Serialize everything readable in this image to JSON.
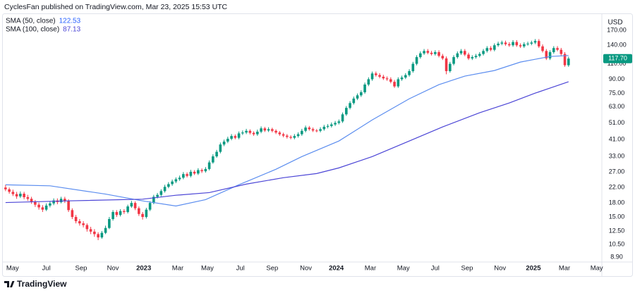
{
  "header": "CyclesFan published on TradingView.com, Mar 23, 2025 15:53 UTC",
  "footer": "TradingView",
  "chart_data": {
    "type": "candlestick",
    "currency": "USD",
    "log_scale": true,
    "grid": false,
    "xlim": [
      -1.5,
      160.8
    ],
    "ylim": [
      8.35,
      210
    ],
    "xticks": [
      {
        "value": 1.9,
        "label": "May"
      },
      {
        "value": 11.0,
        "label": "Jul"
      },
      {
        "value": 20.4,
        "label": "Sep"
      },
      {
        "value": 29.0,
        "label": "Nov"
      },
      {
        "value": 37.3,
        "label": "2023"
      },
      {
        "value": 46.5,
        "label": "Mar"
      },
      {
        "value": 54.5,
        "label": "May"
      },
      {
        "value": 63.4,
        "label": "Jul"
      },
      {
        "value": 72.0,
        "label": "Sep"
      },
      {
        "value": 81.1,
        "label": "Nov"
      },
      {
        "value": 89.3,
        "label": "2024"
      },
      {
        "value": 98.5,
        "label": "Mar"
      },
      {
        "value": 107.4,
        "label": "May"
      },
      {
        "value": 116.0,
        "label": "Jul"
      },
      {
        "value": 124.6,
        "label": "Sep"
      },
      {
        "value": 133.5,
        "label": "Nov"
      },
      {
        "value": 142.5,
        "label": "2025"
      },
      {
        "value": 150.9,
        "label": "Mar"
      },
      {
        "value": 159.6,
        "label": "May"
      }
    ],
    "yticks": [
      {
        "value": 170,
        "label": "170.00"
      },
      {
        "value": 140,
        "label": "140.00"
      },
      {
        "value": 110,
        "label": "110.00"
      },
      {
        "value": 90,
        "label": "90.00"
      },
      {
        "value": 75,
        "label": "75.00"
      },
      {
        "value": 63,
        "label": "63.00"
      },
      {
        "value": 51,
        "label": "51.00"
      },
      {
        "value": 41,
        "label": "41.00"
      },
      {
        "value": 33,
        "label": "33.00"
      },
      {
        "value": 27,
        "label": "27.00"
      },
      {
        "value": 22,
        "label": "22.00"
      },
      {
        "value": 18,
        "label": "18.00"
      },
      {
        "value": 15,
        "label": "15.00"
      },
      {
        "value": 12.5,
        "label": "12.50"
      },
      {
        "value": 10.5,
        "label": "10.50"
      },
      {
        "value": 8.9,
        "label": "8.90"
      }
    ],
    "series": [
      {
        "type": "candlestick",
        "up_color": "#089981",
        "down_color": "#f23645",
        "price_label": "117.70",
        "values": [
          [
            22.0,
            22.8,
            21.0,
            21.5
          ],
          [
            21.5,
            22.0,
            20.3,
            20.8
          ],
          [
            20.8,
            21.4,
            19.7,
            20.2
          ],
          [
            20.2,
            20.8,
            19.0,
            19.6
          ],
          [
            19.6,
            20.9,
            19.2,
            20.3
          ],
          [
            20.3,
            20.8,
            18.9,
            19.4
          ],
          [
            19.4,
            20.0,
            18.5,
            19.0
          ],
          [
            19.0,
            19.5,
            17.8,
            18.2
          ],
          [
            18.2,
            18.7,
            17.1,
            17.6
          ],
          [
            17.6,
            18.1,
            16.5,
            17.0
          ],
          [
            17.0,
            17.5,
            16.0,
            16.5
          ],
          [
            16.5,
            17.9,
            16.2,
            17.4
          ],
          [
            17.4,
            18.4,
            17.0,
            17.9
          ],
          [
            17.9,
            19.1,
            17.5,
            18.6
          ],
          [
            18.6,
            19.1,
            17.7,
            18.2
          ],
          [
            18.2,
            19.5,
            17.9,
            19.0
          ],
          [
            19.0,
            19.5,
            18.0,
            18.5
          ],
          [
            18.5,
            18.9,
            16.0,
            16.4
          ],
          [
            16.4,
            16.8,
            14.6,
            15.0
          ],
          [
            15.0,
            15.4,
            13.8,
            14.2
          ],
          [
            14.2,
            14.6,
            13.4,
            13.8
          ],
          [
            13.8,
            14.2,
            13.1,
            13.5
          ],
          [
            13.5,
            13.8,
            12.4,
            12.8
          ],
          [
            12.8,
            13.2,
            12.0,
            12.4
          ],
          [
            12.4,
            12.8,
            11.6,
            12.0
          ],
          [
            12.0,
            12.3,
            11.1,
            11.5
          ],
          [
            11.5,
            12.5,
            11.3,
            12.2
          ],
          [
            12.2,
            13.4,
            12.0,
            13.0
          ],
          [
            13.0,
            15.0,
            12.8,
            14.6
          ],
          [
            14.6,
            16.4,
            14.3,
            16.0
          ],
          [
            16.0,
            16.4,
            15.0,
            15.4
          ],
          [
            15.4,
            16.6,
            15.1,
            16.2
          ],
          [
            16.2,
            16.6,
            15.6,
            16.0
          ],
          [
            16.0,
            17.6,
            15.7,
            17.2
          ],
          [
            17.2,
            18.5,
            16.9,
            18.0
          ],
          [
            18.0,
            18.4,
            16.4,
            16.8
          ],
          [
            16.8,
            17.2,
            15.2,
            15.6
          ],
          [
            15.6,
            16.0,
            14.5,
            15.0
          ],
          [
            15.0,
            16.9,
            14.7,
            16.5
          ],
          [
            16.5,
            18.4,
            16.2,
            18.0
          ],
          [
            18.0,
            20.0,
            17.7,
            19.5
          ],
          [
            19.5,
            20.5,
            19.1,
            20.0
          ],
          [
            20.0,
            21.5,
            19.6,
            21.0
          ],
          [
            21.0,
            22.8,
            20.6,
            22.2
          ],
          [
            22.2,
            23.6,
            21.8,
            23.0
          ],
          [
            23.0,
            24.4,
            22.5,
            23.8
          ],
          [
            23.8,
            25.1,
            23.3,
            24.5
          ],
          [
            24.5,
            25.7,
            24.0,
            25.0
          ],
          [
            25.0,
            26.9,
            24.5,
            26.2
          ],
          [
            26.2,
            26.8,
            25.1,
            25.6
          ],
          [
            25.6,
            27.7,
            25.1,
            27.0
          ],
          [
            27.0,
            27.6,
            25.9,
            26.4
          ],
          [
            26.4,
            28.3,
            25.9,
            27.6
          ],
          [
            27.6,
            28.2,
            26.6,
            27.2
          ],
          [
            27.2,
            28.7,
            26.7,
            28.0
          ],
          [
            28.0,
            31.3,
            27.5,
            30.5
          ],
          [
            30.5,
            33.9,
            30.0,
            33.0
          ],
          [
            33.0,
            35.9,
            32.4,
            35.0
          ],
          [
            35.0,
            39.5,
            34.3,
            38.5
          ],
          [
            38.5,
            41.0,
            37.7,
            40.0
          ],
          [
            40.0,
            42.6,
            39.2,
            41.5
          ],
          [
            41.5,
            44.1,
            40.7,
            43.0
          ],
          [
            43.0,
            43.9,
            41.2,
            42.0
          ],
          [
            42.0,
            45.6,
            41.2,
            44.5
          ],
          [
            44.5,
            46.2,
            43.6,
            45.0
          ],
          [
            45.0,
            47.2,
            44.1,
            46.0
          ],
          [
            46.0,
            46.9,
            43.9,
            44.8
          ],
          [
            44.8,
            45.7,
            43.1,
            44.0
          ],
          [
            44.0,
            46.7,
            43.1,
            45.5
          ],
          [
            45.5,
            48.7,
            44.6,
            47.5
          ],
          [
            47.5,
            48.4,
            45.3,
            46.2
          ],
          [
            46.2,
            48.2,
            45.3,
            47.0
          ],
          [
            47.0,
            47.9,
            45.1,
            46.0
          ],
          [
            46.0,
            46.9,
            44.1,
            45.0
          ],
          [
            45.0,
            45.9,
            43.1,
            44.0
          ],
          [
            44.0,
            44.9,
            42.3,
            43.2
          ],
          [
            43.2,
            44.1,
            41.6,
            42.5
          ],
          [
            42.5,
            43.4,
            41.2,
            42.0
          ],
          [
            42.0,
            44.1,
            41.2,
            43.0
          ],
          [
            43.0,
            45.1,
            42.1,
            44.0
          ],
          [
            44.0,
            47.2,
            43.1,
            46.0
          ],
          [
            46.0,
            49.2,
            45.1,
            48.0
          ],
          [
            48.0,
            49.0,
            46.1,
            47.0
          ],
          [
            47.0,
            48.0,
            45.3,
            46.2
          ],
          [
            46.2,
            47.1,
            45.1,
            46.0
          ],
          [
            46.0,
            48.2,
            45.1,
            47.0
          ],
          [
            47.0,
            49.7,
            46.1,
            48.5
          ],
          [
            48.5,
            50.2,
            47.5,
            49.0
          ],
          [
            49.0,
            51.3,
            48.0,
            50.0
          ],
          [
            50.0,
            52.3,
            49.0,
            51.0
          ],
          [
            51.0,
            53.3,
            50.0,
            52.0
          ],
          [
            52.0,
            58.4,
            51.0,
            57.0
          ],
          [
            57.0,
            63.5,
            55.9,
            62.0
          ],
          [
            62.0,
            67.7,
            60.8,
            66.0
          ],
          [
            66.0,
            71.8,
            64.7,
            70.0
          ],
          [
            70.0,
            74.8,
            68.6,
            73.0
          ],
          [
            73.0,
            77.9,
            71.5,
            76.0
          ],
          [
            76.0,
            86.1,
            74.5,
            84.0
          ],
          [
            84.0,
            92.3,
            82.3,
            90.0
          ],
          [
            90.0,
            99.4,
            88.2,
            97.0
          ],
          [
            97.0,
            99.4,
            93.1,
            95.0
          ],
          [
            95.0,
            97.4,
            91.1,
            93.0
          ],
          [
            93.0,
            95.3,
            89.2,
            91.0
          ],
          [
            91.0,
            93.3,
            88.2,
            90.0
          ],
          [
            90.0,
            92.3,
            85.3,
            87.0
          ],
          [
            87.0,
            89.2,
            80.4,
            82.0
          ],
          [
            82.0,
            92.3,
            80.4,
            90.0
          ],
          [
            90.0,
            94.3,
            88.2,
            92.0
          ],
          [
            92.0,
            97.4,
            90.2,
            95.0
          ],
          [
            95.0,
            102.5,
            93.1,
            100.0
          ],
          [
            100.0,
            112.8,
            98.0,
            110.0
          ],
          [
            110.0,
            123.0,
            107.8,
            120.0
          ],
          [
            120.0,
            129.2,
            117.6,
            126.0
          ],
          [
            126.0,
            133.3,
            123.5,
            130.0
          ],
          [
            130.0,
            133.3,
            124.5,
            127.0
          ],
          [
            127.0,
            130.2,
            122.5,
            125.0
          ],
          [
            125.0,
            131.2,
            122.5,
            128.0
          ],
          [
            128.0,
            131.2,
            119.6,
            122.0
          ],
          [
            122.0,
            125.1,
            115.6,
            118.0
          ],
          [
            118.0,
            121.0,
            96.0,
            100.0
          ],
          [
            100.0,
            112.8,
            98.0,
            110.0
          ],
          [
            110.0,
            123.0,
            107.8,
            120.0
          ],
          [
            120.0,
            129.2,
            117.6,
            126.0
          ],
          [
            126.0,
            133.3,
            123.5,
            130.0
          ],
          [
            130.0,
            133.3,
            121.5,
            124.0
          ],
          [
            124.0,
            127.1,
            115.6,
            118.0
          ],
          [
            118.0,
            123.0,
            115.6,
            120.0
          ],
          [
            120.0,
            125.1,
            117.6,
            122.0
          ],
          [
            122.0,
            128.1,
            119.6,
            125.0
          ],
          [
            125.0,
            133.3,
            122.5,
            130.0
          ],
          [
            130.0,
            138.4,
            127.4,
            135.0
          ],
          [
            135.0,
            138.4,
            129.4,
            132.0
          ],
          [
            132.0,
            143.5,
            129.4,
            140.0
          ],
          [
            140.0,
            146.6,
            137.2,
            143.0
          ],
          [
            143.0,
            148.6,
            140.1,
            145.0
          ],
          [
            145.0,
            148.6,
            139.2,
            142.0
          ],
          [
            142.0,
            145.6,
            137.2,
            140.0
          ],
          [
            140.0,
            149.7,
            137.2,
            146.0
          ],
          [
            146.0,
            149.7,
            137.2,
            140.0
          ],
          [
            140.0,
            143.5,
            135.2,
            138.0
          ],
          [
            138.0,
            145.6,
            135.2,
            142.0
          ],
          [
            142.0,
            146.6,
            139.2,
            143.0
          ],
          [
            143.0,
            148.6,
            140.1,
            145.0
          ],
          [
            145.0,
            151.7,
            142.1,
            148.0
          ],
          [
            148.0,
            151.7,
            135.2,
            138.0
          ],
          [
            138.0,
            141.5,
            127.4,
            130.0
          ],
          [
            130.0,
            133.3,
            115.6,
            118.0
          ],
          [
            118.0,
            131.2,
            115.6,
            128.0
          ],
          [
            128.0,
            138.4,
            125.4,
            135.0
          ],
          [
            135.0,
            138.4,
            129.4,
            132.0
          ],
          [
            132.0,
            135.3,
            122.5,
            125.0
          ],
          [
            125.0,
            128.1,
            105.8,
            108.0
          ],
          [
            108.0,
            120.6,
            105.8,
            117.7
          ]
        ]
      },
      {
        "type": "line",
        "name": "SMA (50, close)",
        "color": "#5b8def",
        "value_color": "#2962ff",
        "x": [
          0,
          12,
          27,
          37,
          46,
          54,
          63,
          73,
          80,
          90,
          99,
          109,
          117,
          124,
          132,
          139,
          147,
          152
        ],
        "values": [
          22.8,
          22.5,
          20.2,
          18.5,
          17.3,
          18.8,
          22.8,
          27.9,
          32.9,
          40.3,
          53,
          69.8,
          83.9,
          93.7,
          100.8,
          112.5,
          121,
          122.53
        ]
      },
      {
        "type": "line",
        "name": "SMA (100, close)",
        "color": "#4b45d6",
        "value_color": "#4b45d6",
        "x": [
          0,
          17,
          37,
          46,
          55,
          65,
          75,
          84,
          90,
          99,
          109,
          118,
          128,
          136,
          143,
          152
        ],
        "values": [
          18.1,
          18.5,
          18.9,
          19.9,
          20.6,
          23.0,
          25.0,
          26.4,
          28.4,
          32.9,
          40.3,
          48.4,
          58.2,
          66.1,
          75.1,
          87.13
        ]
      }
    ]
  }
}
